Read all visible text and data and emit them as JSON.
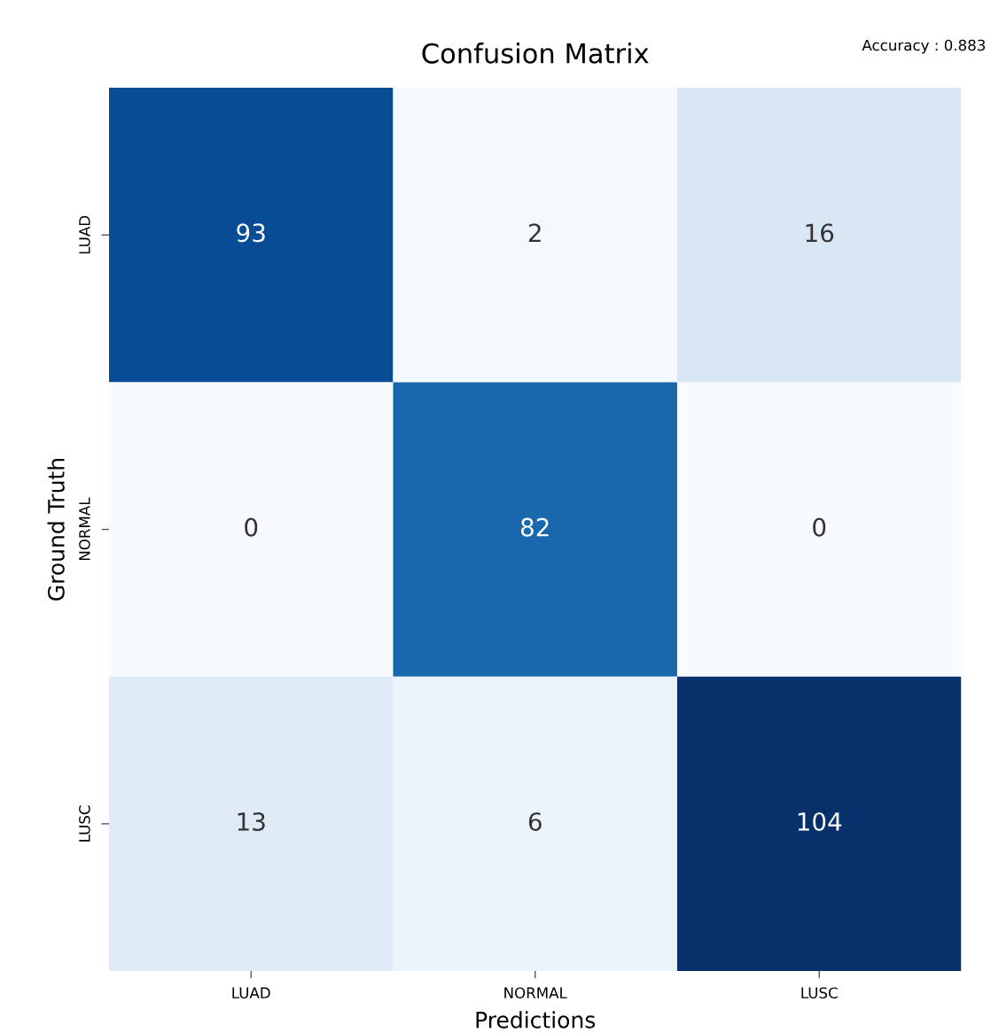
{
  "chart_data": {
    "type": "heatmap",
    "title": "Confusion Matrix",
    "xlabel": "Predictions",
    "ylabel": "Ground Truth",
    "annotations": [
      "Accuracy : 0.883"
    ],
    "categories": [
      "LUAD",
      "NORMAL",
      "LUSC"
    ],
    "y_categories": [
      "LUAD",
      "NORMAL",
      "LUSC"
    ],
    "cells": [
      [
        93,
        2,
        16
      ],
      [
        0,
        82,
        0
      ],
      [
        13,
        6,
        104
      ]
    ],
    "data_labels": true
  }
}
